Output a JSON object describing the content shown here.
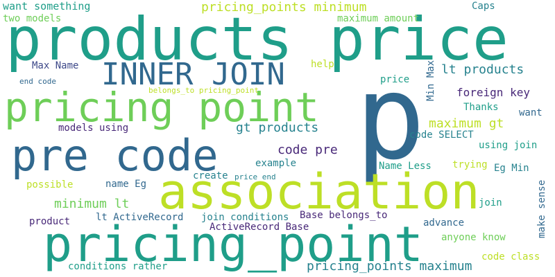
{
  "words": {
    "w01": "products price",
    "w02": "p",
    "w03": "association",
    "w04": "pricing_point",
    "w05": "pricing point",
    "w06": "pre code",
    "w07": "INNER JOIN",
    "w08": "pricing_points minimum",
    "w09": "gt products",
    "w10": "lt products",
    "w11": "maximum gt",
    "w12": "pricing_points maximum",
    "w13": "minimum lt",
    "w14": "code pre",
    "w15": "foreign key",
    "w16": "want something",
    "w17": "two models",
    "w18": "maximum amount",
    "w19": "Caps",
    "w20": "Max Name",
    "w21": "help",
    "w22": "end code",
    "w23": "belongs_to pricing_point",
    "w24": "price",
    "w25": "Min Max",
    "w26": "Thanks",
    "w27": "want",
    "w28": "models using",
    "w29": "code SELECT",
    "w30": "using join",
    "w31": "example",
    "w32": "trying",
    "w33": "Name Less",
    "w34": "Eg Min",
    "w35": "create",
    "w36": "price end",
    "w37": "possible",
    "w38": "name Eg",
    "w39": "make sense",
    "w40": "join",
    "w41": "Base belongs_to",
    "w42": "lt ActiveRecord",
    "w43": "join conditions",
    "w44": "product",
    "w45": "advance",
    "w46": "ActiveRecord Base",
    "w47": "anyone know",
    "w48": "code class",
    "w49": "conditions rather"
  },
  "palette": {
    "teal": "#1f9e89",
    "navy": "#31688e",
    "lime": "#bddf26",
    "green": "#6ece58",
    "purple": "#482878",
    "blue": "#3e4989",
    "mid": "#26828e"
  }
}
